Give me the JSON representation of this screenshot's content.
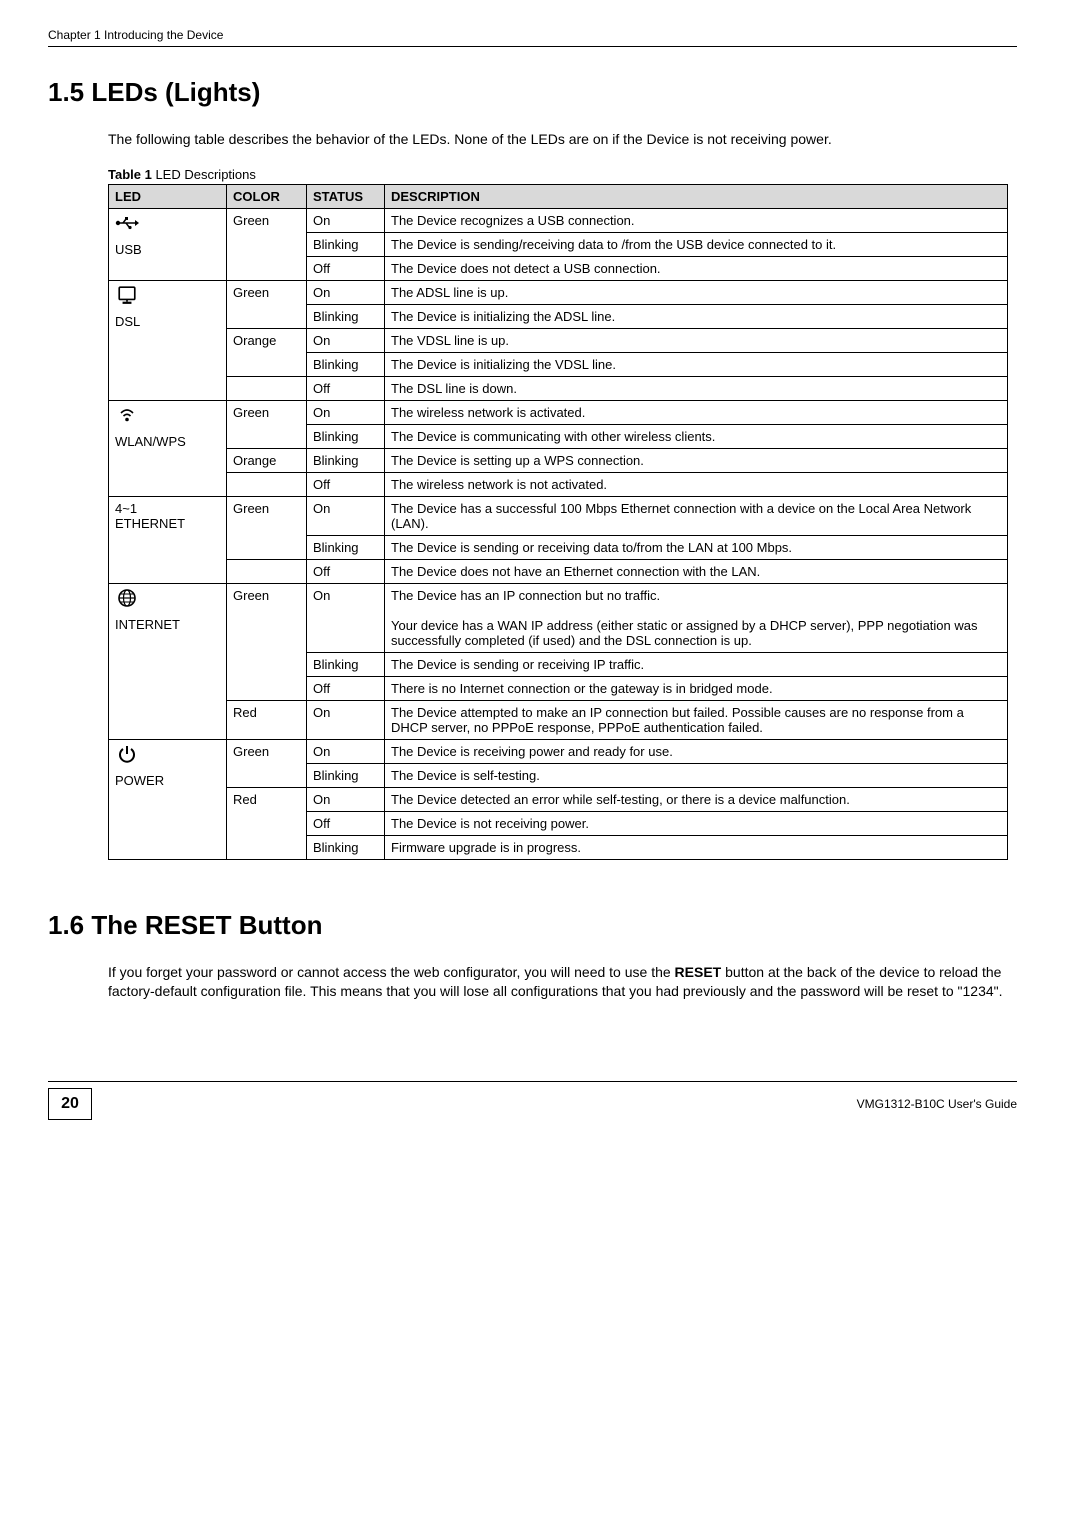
{
  "chapter_header": "Chapter 1 Introducing the Device",
  "section_1_5": {
    "heading": "1.5  LEDs (Lights)",
    "intro": "The following table describes the behavior of the LEDs. None of the LEDs are on if the Device is not receiving power."
  },
  "table1": {
    "caption_label": "Table 1",
    "caption_text": "   LED Descriptions",
    "headers": [
      "LED",
      "COLOR",
      "STATUS",
      "DESCRIPTION"
    ],
    "groups": [
      {
        "led_label": "USB",
        "icon": "usb",
        "rows": [
          {
            "color": "Green",
            "color_span": 3,
            "status": "On",
            "desc": "The Device recognizes a USB connection."
          },
          {
            "status": "Blinking",
            "desc": "The Device is sending/receiving data to /from the USB device connected to it."
          },
          {
            "status": "Off",
            "desc": "The Device does not detect a USB connection."
          }
        ]
      },
      {
        "led_label": "DSL",
        "icon": "dsl",
        "rows": [
          {
            "color": "Green",
            "color_span": 2,
            "status": "On",
            "desc": "The ADSL line is up."
          },
          {
            "status": "Blinking",
            "desc": "The Device is initializing the ADSL line."
          },
          {
            "color": "Orange",
            "color_span": 2,
            "status": "On",
            "desc": "The VDSL line is up."
          },
          {
            "status": "Blinking",
            "desc": "The Device is initializing the VDSL line."
          },
          {
            "color": "",
            "color_span": 1,
            "status": "Off",
            "desc": "The DSL line is down."
          }
        ]
      },
      {
        "led_label": "WLAN/WPS",
        "icon": "wlan",
        "rows": [
          {
            "color": "Green",
            "color_span": 2,
            "status": "On",
            "desc": "The wireless network is activated."
          },
          {
            "status": "Blinking",
            "desc": "The Device is communicating with other wireless clients."
          },
          {
            "color": "Orange",
            "color_span": 1,
            "status": "Blinking",
            "desc": "The Device is setting up a WPS connection."
          },
          {
            "color": "",
            "color_span": 1,
            "status": "Off",
            "desc": "The wireless network is not activated."
          }
        ]
      },
      {
        "led_label": "4~1\nETHERNET",
        "icon": "",
        "rows": [
          {
            "color": "Green",
            "color_span": 2,
            "status": "On",
            "desc": "The Device has a successful 100 Mbps Ethernet connection with a device on the Local Area Network (LAN)."
          },
          {
            "status": "Blinking",
            "desc": "The Device is sending or receiving data to/from the LAN at 100 Mbps."
          },
          {
            "color": "",
            "color_span": 1,
            "status": "Off",
            "desc": "The Device does not have an Ethernet connection with the LAN."
          }
        ]
      },
      {
        "led_label": "INTERNET",
        "icon": "internet",
        "rows": [
          {
            "color": "Green",
            "color_span": 3,
            "status": "On",
            "desc": "The Device has an IP connection but no traffic.\n\nYour device has a WAN IP address (either static or assigned by a DHCP server), PPP negotiation was successfully completed (if used) and the DSL connection is up."
          },
          {
            "status": "Blinking",
            "desc": "The Device is sending or receiving IP traffic."
          },
          {
            "status": "Off",
            "desc": "There is no Internet connection or the gateway is in bridged mode."
          },
          {
            "color": "Red",
            "color_span": 1,
            "status": "On",
            "desc": "The Device attempted to make an IP connection but failed. Possible causes are no response from a DHCP server, no PPPoE response, PPPoE authentication failed."
          }
        ]
      },
      {
        "led_label": "POWER",
        "icon": "power",
        "rows": [
          {
            "color": "Green",
            "color_span": 2,
            "status": "On",
            "desc": "The Device is receiving power and ready for use."
          },
          {
            "status": "Blinking",
            "desc": "The Device is self-testing."
          },
          {
            "color": "Red",
            "color_span": 3,
            "status": "On",
            "desc": "The Device detected an error while self-testing, or there is a device malfunction."
          },
          {
            "status": "Off",
            "desc": "The Device is not receiving power."
          },
          {
            "status": "Blinking",
            "desc": "Firmware upgrade is in progress."
          }
        ]
      }
    ]
  },
  "section_1_6": {
    "heading": "1.6  The RESET Button",
    "body_pre": "If you forget your password or cannot access the web configurator, you will need to use the ",
    "body_bold": "RESET",
    "body_post": " button at the back of the device to reload the factory-default configuration file. This means that you will lose all configurations that you had previously and the password will be reset to \"1234\"."
  },
  "footer": {
    "page": "20",
    "guide": "VMG1312-B10C User's Guide"
  },
  "colors": {
    "header_bg": "#d9d9d9",
    "border": "#000000",
    "text": "#000000",
    "bg": "#ffffff"
  },
  "fonts": {
    "body": "Verdana",
    "heading": "Arial",
    "body_size_pt": 10.5,
    "heading_size_pt": 20
  }
}
